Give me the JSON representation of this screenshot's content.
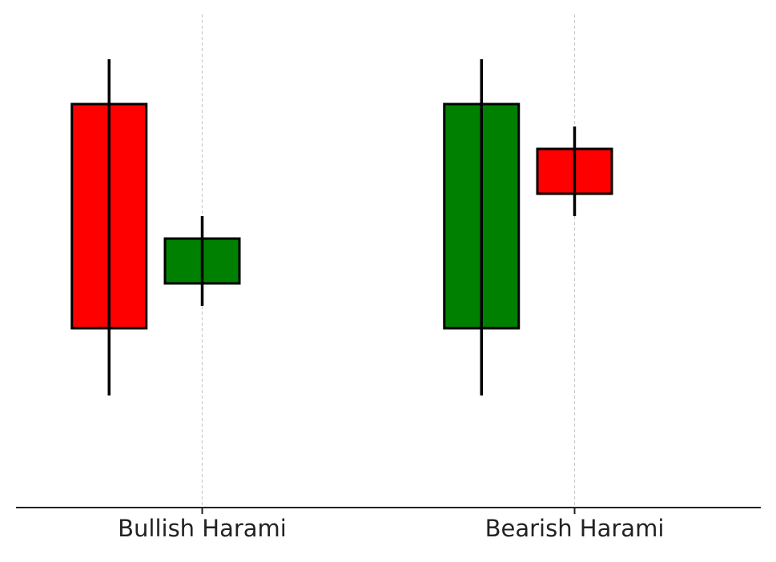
{
  "chart_data": {
    "type": "candlestick",
    "x": [
      0,
      1,
      4,
      5
    ],
    "open": [
      9,
      5,
      4,
      8
    ],
    "high": [
      10,
      6.5,
      10,
      8.5
    ],
    "low": [
      2.5,
      4.5,
      2.5,
      6.5
    ],
    "close": [
      4,
      6,
      9,
      7
    ],
    "up_color": "#008000",
    "down_color": "#ff0000",
    "xlim": [
      -1,
      7
    ],
    "xticks": [
      {
        "value": 1,
        "label": "Bullish Harami"
      },
      {
        "value": 5,
        "label": "Bearish Harami"
      }
    ],
    "ylim": [
      0,
      11
    ],
    "grid": true
  }
}
